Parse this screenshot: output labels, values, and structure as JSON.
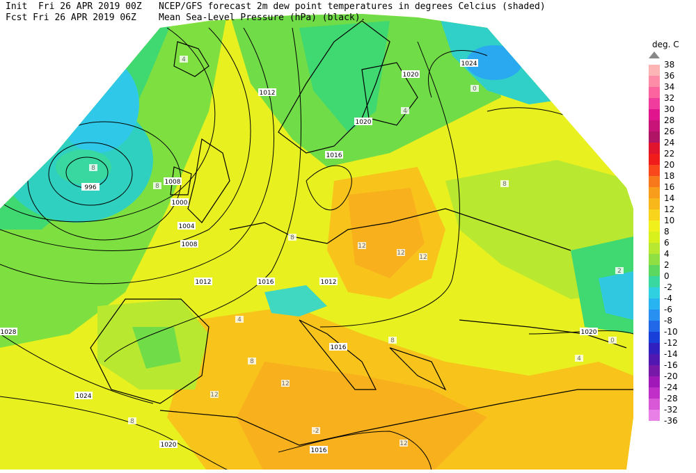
{
  "header": {
    "init": "Init  Fri 26 APR 2019 00Z",
    "fcst": "Fcst Fri 26 APR 2019 06Z",
    "title": "NCEP/GFS forecast 2m dew point temperatures in degrees Celcius (shaded)",
    "subtitle": "Mean Sea-Level Pressure (hPa) (black)."
  },
  "legend": {
    "title": "deg. C",
    "labels": [
      "38",
      "36",
      "34",
      "32",
      "30",
      "28",
      "26",
      "24",
      "22",
      "20",
      "18",
      "16",
      "14",
      "12",
      "10",
      "8",
      "6",
      "4",
      "2",
      "0",
      "-2",
      "-4",
      "-6",
      "-8",
      "-10",
      "-12",
      "-14",
      "-16",
      "-20",
      "-24",
      "-28",
      "-32",
      "-36"
    ],
    "colors": [
      "#fcb4b4",
      "#fc8ca8",
      "#fc64a0",
      "#f03c9c",
      "#e0148c",
      "#c81478",
      "#b01464",
      "#e0142c",
      "#f01c1c",
      "#f8481c",
      "#f8781c",
      "#f89c1c",
      "#f8b81c",
      "#f8d41c",
      "#f0f01c",
      "#d8f01c",
      "#b8e830",
      "#90e044",
      "#5cd860",
      "#38d8a0",
      "#30d0e0",
      "#28b4f0",
      "#2890f0",
      "#2068e8",
      "#1840d8",
      "#3020c0",
      "#5018b0",
      "#7818a8",
      "#a018b8",
      "#c030c8",
      "#d858d8",
      "#e880e8",
      "#f4a8f4"
    ]
  },
  "map": {
    "pressure_labels": [
      "996",
      "1000",
      "1004",
      "1008",
      "1012",
      "1012",
      "1016",
      "1016",
      "1016",
      "1020",
      "1020",
      "1020",
      "1024",
      "1024",
      "1028",
      "1020",
      "1016",
      "1012",
      "1008"
    ],
    "dewpoint_labels": [
      "4",
      "8",
      "8",
      "12",
      "12",
      "12",
      "8",
      "4",
      "0",
      "-2",
      "8",
      "0",
      "4",
      "8",
      "2",
      "8",
      "12",
      "12",
      "8",
      "12",
      "4"
    ]
  }
}
